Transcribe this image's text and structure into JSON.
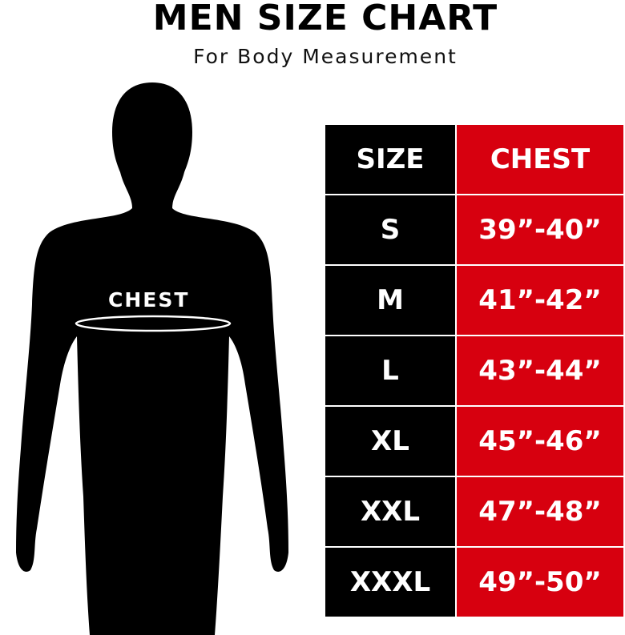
{
  "title": "MEN SIZE CHART",
  "subtitle": "For Body Measurement",
  "figure_label": "CHEST",
  "colors": {
    "size_column": "#000000",
    "chest_column": "#d7000f",
    "text": "#ffffff"
  },
  "table": {
    "headers": [
      "SIZE",
      "CHEST"
    ],
    "rows": [
      {
        "size": "S",
        "chest": "39”-40”"
      },
      {
        "size": "M",
        "chest": "41”-42”"
      },
      {
        "size": "L",
        "chest": "43”-44”"
      },
      {
        "size": "XL",
        "chest": "45”-46”"
      },
      {
        "size": "XXL",
        "chest": "47”-48”"
      },
      {
        "size": "XXXL",
        "chest": "49”-50”"
      }
    ]
  }
}
